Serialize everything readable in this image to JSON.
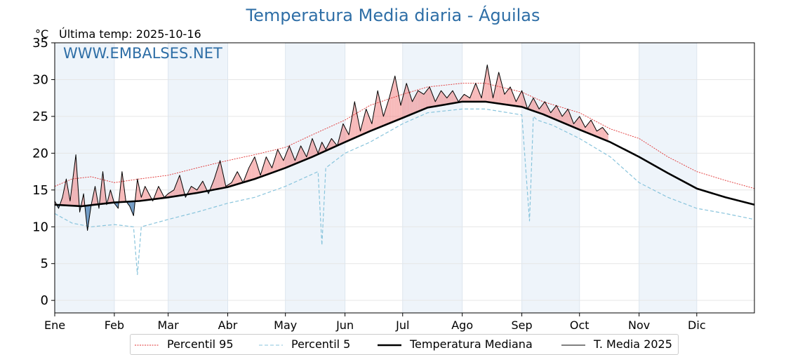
{
  "header": {
    "title": "Temperatura Media diaria - Águilas",
    "unit": "°C",
    "last_temp": "Última temp: 2025-10-16",
    "watermark": "WWW.EMBALSES.NET"
  },
  "colors": {
    "title": "#2e6ea6",
    "p95": "#e03030",
    "p5": "#88c4dc",
    "median": "#000000",
    "current": "#000000",
    "above_fill": "#f08080",
    "below_fill": "#3f78b0",
    "month_shade": "#eef4fa"
  },
  "legend": {
    "p95": "Percentil 95",
    "p5": "Percentil 5",
    "median": "Temperatura Mediana",
    "current": "T. Media 2025"
  },
  "chart_data": {
    "type": "line",
    "title": "Temperatura Media diaria - Águilas",
    "ylabel": "°C",
    "xlabel": "",
    "ylim": [
      -1.7,
      35
    ],
    "xlim": [
      1,
      365
    ],
    "yticks": [
      0,
      5,
      10,
      15,
      20,
      25,
      30,
      35
    ],
    "grid": true,
    "months": [
      {
        "label": "Ene",
        "day": 1
      },
      {
        "label": "Feb",
        "day": 32
      },
      {
        "label": "Mar",
        "day": 60
      },
      {
        "label": "Abr",
        "day": 91
      },
      {
        "label": "May",
        "day": 121
      },
      {
        "label": "Jun",
        "day": 152
      },
      {
        "label": "Jul",
        "day": 182
      },
      {
        "label": "Ago",
        "day": 213
      },
      {
        "label": "Sep",
        "day": 244
      },
      {
        "label": "Oct",
        "day": 274
      },
      {
        "label": "Nov",
        "day": 305
      },
      {
        "label": "Dic",
        "day": 335
      }
    ],
    "shaded_months": [
      1,
      3,
      5,
      7,
      9,
      11
    ],
    "series": [
      {
        "name": "Percentil 95",
        "style": "dotted",
        "x": [
          1,
          10,
          20,
          32,
          45,
          60,
          75,
          91,
          105,
          121,
          135,
          152,
          165,
          182,
          195,
          213,
          225,
          244,
          255,
          274,
          290,
          305,
          320,
          335,
          350,
          365
        ],
        "values": [
          15.5,
          16.5,
          16.8,
          16.0,
          16.5,
          17.0,
          18.0,
          19.0,
          19.8,
          20.8,
          22.5,
          24.5,
          26.5,
          28.0,
          29.0,
          29.5,
          29.5,
          28.3,
          27.0,
          25.5,
          23.3,
          22.0,
          19.5,
          17.5,
          16.3,
          15.2
        ]
      },
      {
        "name": "Percentil 5",
        "style": "dashed",
        "x": [
          1,
          10,
          20,
          32,
          42,
          44,
          46,
          60,
          75,
          91,
          105,
          121,
          138,
          140,
          142,
          152,
          165,
          182,
          195,
          213,
          225,
          244,
          248,
          250,
          252,
          260,
          274,
          290,
          305,
          320,
          335,
          350,
          365
        ],
        "values": [
          11.8,
          10.5,
          10.0,
          10.3,
          10.0,
          3.5,
          10.0,
          11.0,
          12.0,
          13.2,
          14.0,
          15.5,
          17.5,
          7.5,
          18.0,
          20.0,
          21.5,
          24.0,
          25.5,
          26.0,
          26.0,
          25.2,
          10.8,
          25.0,
          24.5,
          23.8,
          22.0,
          19.5,
          16.0,
          14.0,
          12.5,
          11.8,
          11.0
        ]
      },
      {
        "name": "Temperatura Mediana",
        "style": "thick",
        "x": [
          1,
          15,
          32,
          45,
          60,
          75,
          91,
          105,
          121,
          135,
          152,
          165,
          182,
          195,
          213,
          225,
          244,
          255,
          274,
          290,
          305,
          320,
          335,
          350,
          365
        ],
        "values": [
          13.0,
          12.8,
          13.3,
          13.5,
          14.0,
          14.6,
          15.4,
          16.5,
          18.0,
          19.5,
          21.5,
          23.0,
          24.8,
          26.2,
          27.0,
          27.0,
          26.3,
          25.3,
          23.2,
          21.5,
          19.5,
          17.3,
          15.2,
          14.0,
          13.0
        ]
      },
      {
        "name": "T. Media 2025",
        "style": "thin",
        "x": [
          1,
          3,
          5,
          7,
          9,
          12,
          14,
          16,
          18,
          20,
          22,
          24,
          26,
          28,
          30,
          32,
          34,
          36,
          38,
          40,
          42,
          44,
          46,
          48,
          50,
          52,
          55,
          58,
          60,
          63,
          66,
          69,
          72,
          75,
          78,
          81,
          84,
          87,
          90,
          93,
          96,
          99,
          102,
          105,
          108,
          111,
          114,
          117,
          120,
          123,
          126,
          129,
          132,
          135,
          138,
          140,
          142,
          145,
          148,
          151,
          154,
          157,
          160,
          163,
          166,
          169,
          172,
          175,
          178,
          181,
          184,
          187,
          190,
          193,
          196,
          199,
          202,
          205,
          208,
          211,
          214,
          217,
          220,
          223,
          226,
          229,
          232,
          235,
          238,
          241,
          244,
          247,
          250,
          253,
          256,
          259,
          262,
          265,
          268,
          271,
          274,
          277,
          280,
          283,
          286,
          289
        ],
        "values": [
          13.5,
          12.5,
          14.0,
          16.5,
          13.5,
          19.8,
          12.0,
          14.5,
          9.5,
          13.0,
          15.5,
          12.5,
          17.5,
          13.0,
          15.0,
          13.2,
          12.5,
          17.5,
          13.5,
          12.8,
          11.5,
          16.5,
          14.0,
          15.5,
          14.5,
          13.5,
          15.5,
          14.0,
          14.5,
          15.0,
          17.0,
          14.0,
          15.5,
          15.0,
          16.2,
          14.5,
          16.5,
          19.0,
          15.5,
          16.0,
          17.5,
          16.0,
          18.0,
          19.5,
          17.0,
          19.5,
          18.0,
          20.5,
          19.0,
          21.0,
          19.0,
          21.0,
          19.5,
          22.0,
          20.0,
          21.5,
          20.5,
          22.0,
          21.0,
          24.0,
          22.5,
          27.0,
          23.0,
          26.0,
          24.0,
          28.5,
          25.0,
          27.5,
          30.5,
          26.5,
          29.5,
          27.0,
          28.5,
          28.0,
          29.0,
          27.0,
          28.5,
          27.5,
          28.5,
          27.0,
          28.0,
          27.5,
          29.5,
          27.5,
          32.0,
          27.5,
          31.0,
          28.0,
          29.0,
          27.0,
          28.5,
          26.0,
          27.5,
          26.0,
          27.0,
          25.5,
          26.5,
          25.0,
          26.0,
          24.0,
          25.0,
          23.5,
          24.5,
          23.0,
          23.5,
          22.5
        ]
      }
    ]
  }
}
